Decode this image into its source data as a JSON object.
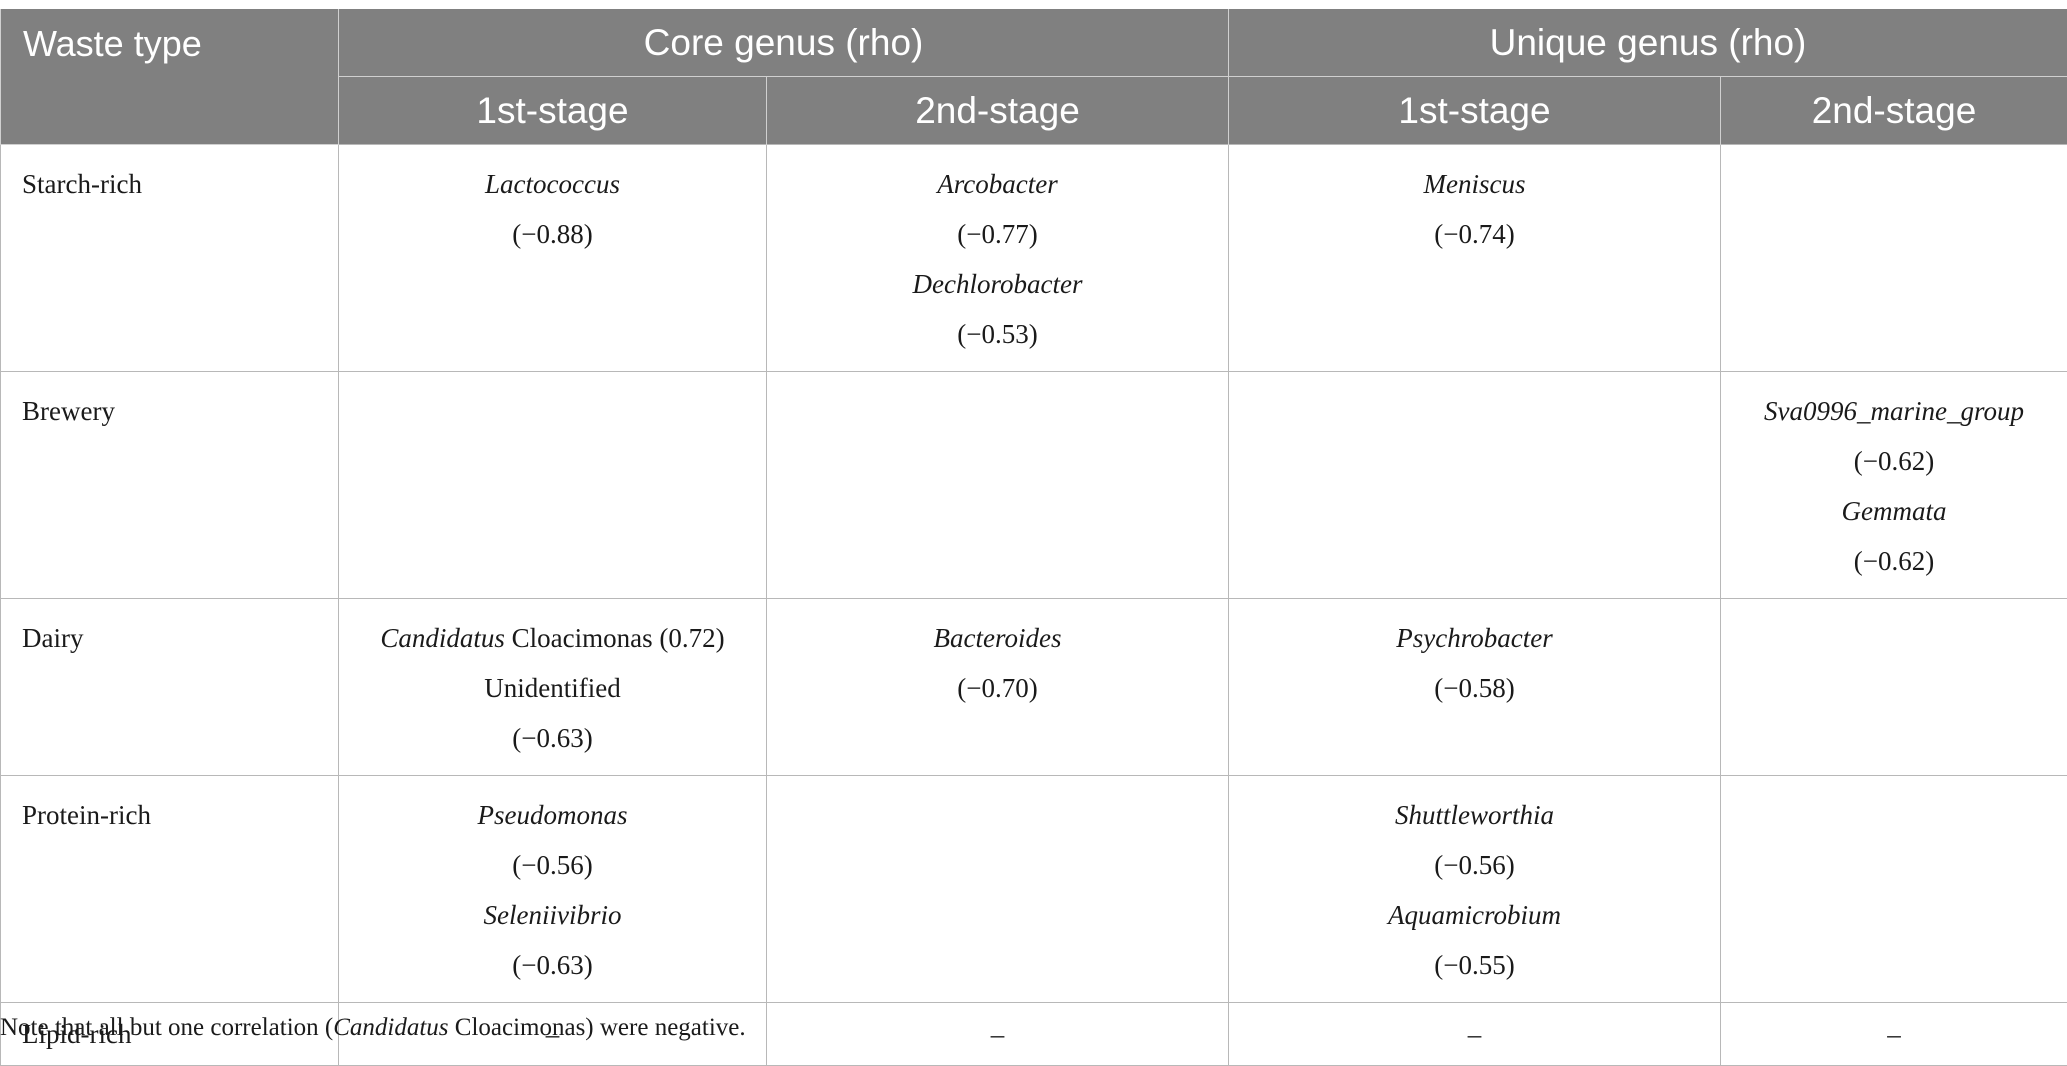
{
  "table": {
    "header": {
      "waste_type": "Waste type",
      "core_group": "Core genus (rho)",
      "unique_group": "Unique genus (rho)",
      "stage1": "1st-stage",
      "stage2": "2nd-stage"
    },
    "rows": [
      {
        "waste": "Starch-rich",
        "cells": [
          [
            {
              "genus": "Lactococcus",
              "rho": ""
            },
            {
              "genus": "",
              "rho": "(−0.88)"
            }
          ],
          [
            {
              "genus": "Arcobacter",
              "rho": ""
            },
            {
              "genus": "",
              "rho": "(−0.77)"
            },
            {
              "genus": "Dechlorobacter",
              "rho": ""
            },
            {
              "genus": "",
              "rho": "(−0.53)"
            }
          ],
          [
            {
              "genus": "Meniscus",
              "rho": ""
            },
            {
              "genus": "",
              "rho": "(−0.74)"
            }
          ],
          []
        ]
      },
      {
        "waste": "Brewery",
        "cells": [
          [],
          [],
          [],
          [
            {
              "genus": "Sva0996_marine_group",
              "rho": ""
            },
            {
              "genus": "",
              "rho": "(−0.62)"
            },
            {
              "genus": "Gemmata",
              "rho": ""
            },
            {
              "genus": "",
              "rho": "(−0.62)"
            }
          ]
        ]
      },
      {
        "waste": "Dairy",
        "cells": [
          [
            {
              "genus": "Candidatus",
              "rho": " Cloacimonas (0.72)"
            },
            {
              "genus": "",
              "rho": "Unidentified"
            },
            {
              "genus": "",
              "rho": "(−0.63)"
            }
          ],
          [
            {
              "genus": "Bacteroides",
              "rho": ""
            },
            {
              "genus": "",
              "rho": "(−0.70)"
            }
          ],
          [
            {
              "genus": "Psychrobacter",
              "rho": ""
            },
            {
              "genus": "",
              "rho": "(−0.58)"
            }
          ],
          []
        ]
      },
      {
        "waste": "Protein-rich",
        "cells": [
          [
            {
              "genus": "Pseudomonas",
              "rho": ""
            },
            {
              "genus": "",
              "rho": "(−0.56)"
            },
            {
              "genus": "Seleniivibrio",
              "rho": ""
            },
            {
              "genus": "",
              "rho": "(−0.63)"
            }
          ],
          [],
          [
            {
              "genus": "Shuttleworthia",
              "rho": ""
            },
            {
              "genus": "",
              "rho": "(−0.56)"
            },
            {
              "genus": "Aquamicrobium",
              "rho": ""
            },
            {
              "genus": "",
              "rho": "(−0.55)"
            }
          ],
          []
        ]
      },
      {
        "waste": "Lipid-rich",
        "cells": [
          [
            {
              "genus": "",
              "rho": "–"
            }
          ],
          [
            {
              "genus": "",
              "rho": "–"
            }
          ],
          [
            {
              "genus": "",
              "rho": "–"
            }
          ],
          [
            {
              "genus": "",
              "rho": "–"
            }
          ]
        ]
      }
    ]
  },
  "note": {
    "prefix": "Note that all but one correlation (",
    "genus": "Candidatus",
    "suffix": " Cloacimonas) were negative."
  },
  "colors": {
    "header_bg": "#808080",
    "header_text": "#ffffff",
    "grid": "#b8b8b8"
  }
}
